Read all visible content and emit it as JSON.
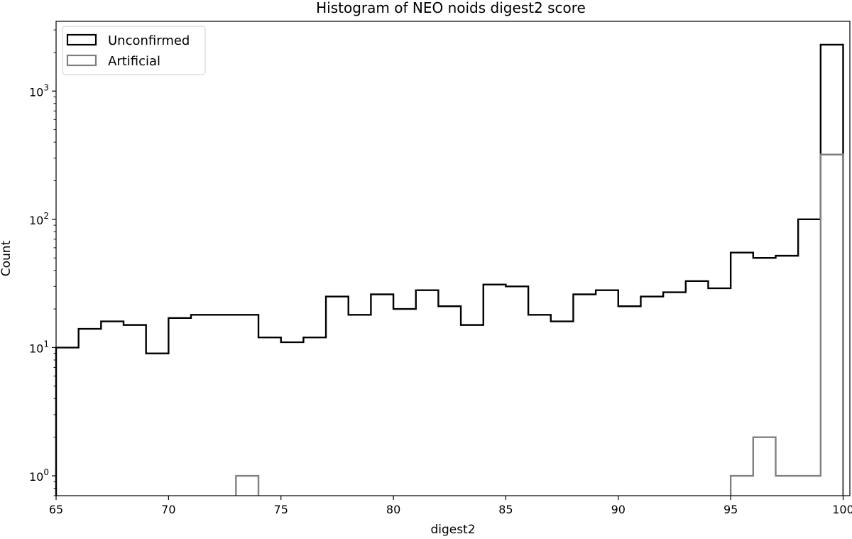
{
  "chart_data": {
    "type": "histogram",
    "title": "Histogram of NEO noids digest2 score",
    "xlabel": "digest2",
    "ylabel": "Count",
    "xlim": [
      65,
      100.3
    ],
    "ylim": [
      0.7,
      3500
    ],
    "yscale": "log",
    "x_ticks": [
      "65",
      "70",
      "75",
      "80",
      "85",
      "90",
      "95",
      "100"
    ],
    "y_ticks": [
      {
        "value": 1,
        "base": "10",
        "exp": "0"
      },
      {
        "value": 10,
        "base": "10",
        "exp": "1"
      },
      {
        "value": 100,
        "base": "10",
        "exp": "2"
      },
      {
        "value": 1000,
        "base": "10",
        "exp": "3"
      }
    ],
    "grid": false,
    "legend_position": "top-left",
    "series": [
      {
        "name": "Unconfirmed",
        "color": "#000000",
        "bins": [
          65,
          66,
          67,
          68,
          69,
          70,
          71,
          72,
          73,
          74,
          75,
          76,
          77,
          78,
          79,
          80,
          81,
          82,
          83,
          84,
          85,
          86,
          87,
          88,
          89,
          90,
          91,
          92,
          93,
          94,
          95,
          96,
          97,
          98,
          99,
          100
        ],
        "counts": [
          10,
          14,
          16,
          15,
          9,
          17,
          18,
          18,
          18,
          12,
          11,
          12,
          25,
          18,
          26,
          20,
          28,
          21,
          15,
          31,
          30,
          18,
          16,
          26,
          28,
          21,
          25,
          27,
          33,
          29,
          55,
          50,
          52,
          100,
          2300
        ]
      },
      {
        "name": "Artificial",
        "color": "#808080",
        "bins": [
          65,
          66,
          67,
          68,
          69,
          70,
          71,
          72,
          73,
          74,
          75,
          76,
          77,
          78,
          79,
          80,
          81,
          82,
          83,
          84,
          85,
          86,
          87,
          88,
          89,
          90,
          91,
          92,
          93,
          94,
          95,
          96,
          97,
          98,
          99,
          100
        ],
        "counts": [
          0,
          0,
          0,
          0,
          0,
          0,
          0,
          0,
          1,
          0,
          0,
          0,
          0,
          0,
          0,
          0,
          0,
          0,
          0,
          0,
          0,
          0,
          0,
          0,
          0,
          0,
          0,
          0,
          0,
          0,
          1,
          2,
          1,
          1,
          320
        ]
      }
    ]
  }
}
